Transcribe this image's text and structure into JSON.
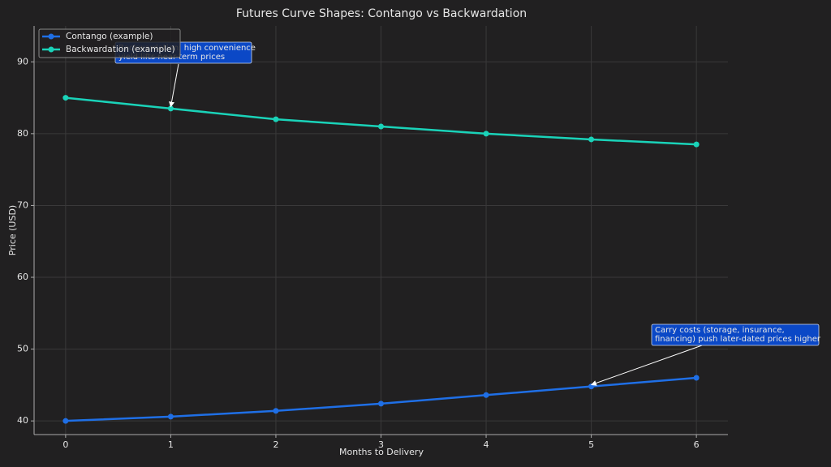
{
  "chart_data": {
    "type": "line",
    "title": "Futures Curve Shapes: Contango vs Backwardation",
    "xlabel": "Months to Delivery",
    "ylabel": "Price (USD)",
    "x": [
      0,
      1,
      2,
      3,
      4,
      5,
      6
    ],
    "series": [
      {
        "name": "Contango (example)",
        "color": "#1f6fe6",
        "values": [
          40,
          40.6,
          41.4,
          42.4,
          43.6,
          44.8,
          46.0
        ]
      },
      {
        "name": "Backwardation (example)",
        "color": "#1ad3b9",
        "values": [
          85,
          83.5,
          82,
          81,
          80,
          79.2,
          78.5
        ]
      }
    ],
    "xlim": [
      -0.3,
      6.3
    ],
    "xticks": [
      0,
      1,
      2,
      3,
      4,
      5,
      6
    ],
    "ylim": [
      38.1,
      95
    ],
    "yticks": [
      40,
      50,
      60,
      70,
      80,
      90
    ],
    "grid": true,
    "legend": "upper-left",
    "annotations": [
      {
        "lines": [
          "Backwardation: high convenience",
          "yield lifts near-term prices"
        ],
        "x": 1,
        "y": 83.5
      },
      {
        "lines": [
          "Carry costs (storage, insurance,",
          "financing) push later-dated prices higher"
        ],
        "x": 5,
        "y": 44.8
      }
    ]
  }
}
